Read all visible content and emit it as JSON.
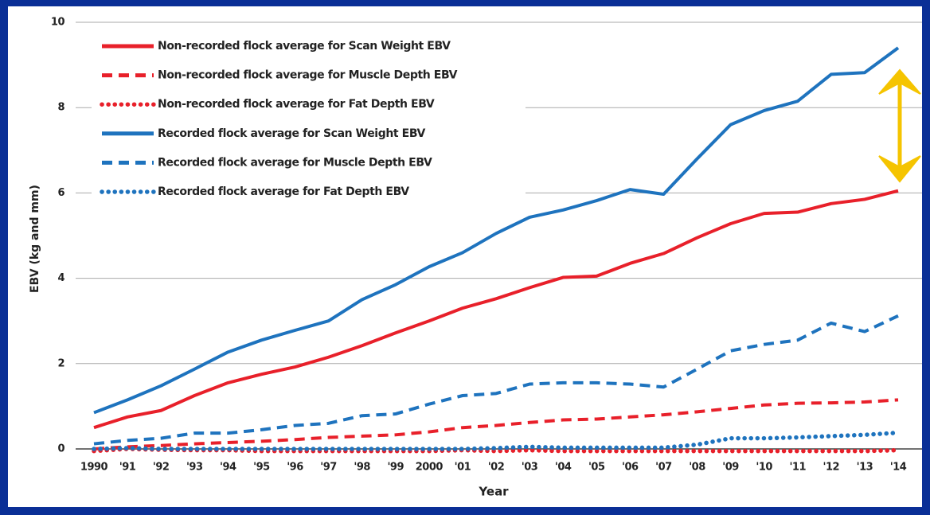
{
  "chart_data": {
    "type": "line",
    "xlabel": "Year",
    "ylabel": "EBV (kg and mm)",
    "categories": [
      "1990",
      "'91",
      "'92",
      "'93",
      "'94",
      "'95",
      "'96",
      "'97",
      "'98",
      "'99",
      "2000",
      "'01",
      "'02",
      "'03",
      "'04",
      "'05",
      "'06",
      "'07",
      "'08",
      "'09",
      "'10",
      "'11",
      "'12",
      "'13",
      "'14"
    ],
    "series": [
      {
        "name": "Non-recorded flock average for Scan Weight EBV",
        "color": "#e8202a",
        "dash": "solid",
        "values": [
          0.5,
          0.75,
          0.9,
          1.25,
          1.55,
          1.75,
          1.92,
          2.15,
          2.42,
          2.72,
          3.0,
          3.3,
          3.52,
          3.78,
          4.02,
          4.05,
          4.35,
          4.58,
          4.95,
          5.28,
          5.52,
          5.55,
          5.75,
          5.85,
          6.05
        ]
      },
      {
        "name": "Non-recorded flock average for Muscle Depth EBV",
        "color": "#e8202a",
        "dash": "dashed",
        "values": [
          0.0,
          0.05,
          0.08,
          0.12,
          0.15,
          0.18,
          0.22,
          0.27,
          0.3,
          0.33,
          0.4,
          0.5,
          0.55,
          0.62,
          0.68,
          0.7,
          0.75,
          0.8,
          0.87,
          0.95,
          1.03,
          1.07,
          1.08,
          1.1,
          1.15
        ]
      },
      {
        "name": "Non-recorded flock average for Fat Depth EBV",
        "color": "#e8202a",
        "dash": "dotted",
        "values": [
          -0.05,
          0.0,
          -0.02,
          -0.03,
          -0.03,
          -0.05,
          -0.05,
          -0.05,
          -0.05,
          -0.05,
          -0.05,
          -0.03,
          -0.05,
          -0.03,
          -0.05,
          -0.05,
          -0.05,
          -0.05,
          -0.05,
          -0.05,
          -0.05,
          -0.05,
          -0.05,
          -0.05,
          -0.03
        ]
      },
      {
        "name": "Recorded flock average for Scan Weight EBV",
        "color": "#1e73be",
        "dash": "solid",
        "values": [
          0.85,
          1.15,
          1.48,
          1.87,
          2.27,
          2.55,
          2.78,
          3.0,
          3.5,
          3.85,
          4.27,
          4.6,
          5.05,
          5.43,
          5.6,
          5.82,
          6.08,
          5.97,
          6.8,
          7.6,
          7.93,
          8.15,
          8.78,
          8.82,
          9.4
        ]
      },
      {
        "name": "Recorded flock average for Muscle Depth EBV",
        "color": "#1e73be",
        "dash": "dashed",
        "values": [
          0.12,
          0.2,
          0.25,
          0.37,
          0.37,
          0.45,
          0.55,
          0.6,
          0.78,
          0.82,
          1.05,
          1.25,
          1.3,
          1.52,
          1.55,
          1.55,
          1.52,
          1.45,
          1.87,
          2.3,
          2.45,
          2.55,
          2.95,
          2.75,
          3.12
        ]
      },
      {
        "name": "Recorded flock average for Fat Depth EBV",
        "color": "#1e73be",
        "dash": "dotted",
        "values": [
          0.0,
          0.02,
          0.0,
          0.0,
          0.0,
          0.0,
          0.0,
          0.0,
          0.0,
          0.0,
          0.0,
          0.0,
          0.02,
          0.05,
          0.03,
          0.03,
          0.03,
          0.03,
          0.1,
          0.25,
          0.25,
          0.27,
          0.3,
          0.33,
          0.38
        ]
      }
    ],
    "ylim": [
      0,
      10
    ],
    "yticks": [
      0,
      2,
      4,
      6,
      8,
      10
    ],
    "grid": true,
    "legend": "upper left"
  }
}
